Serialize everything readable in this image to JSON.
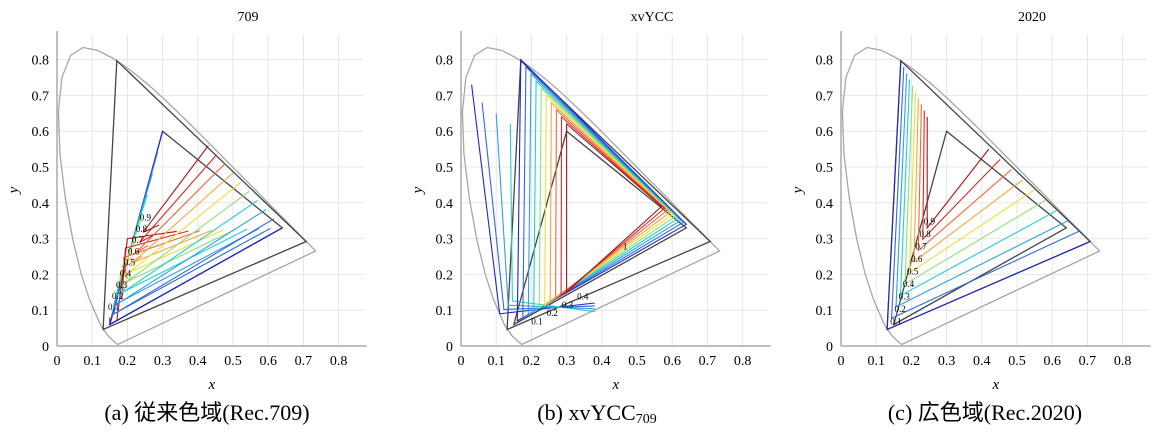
{
  "chart_data": [
    {
      "type": "line",
      "title": "709",
      "xlabel": "x",
      "ylabel": "y",
      "xlim": [
        0,
        0.87
      ],
      "ylim": [
        0,
        0.88
      ],
      "xticks": [
        "0",
        "0.1",
        "0.2",
        "0.3",
        "0.4",
        "0.5",
        "0.6",
        "0.7",
        "0.8"
      ],
      "yticks": [
        "0",
        "0.1",
        "0.2",
        "0.3",
        "0.4",
        "0.5",
        "0.6",
        "0.7",
        "0.8"
      ],
      "grid": true,
      "gamuts": [
        {
          "name": "Rec.709",
          "points": [
            [
              0.64,
              0.33
            ],
            [
              0.3,
              0.6
            ],
            [
              0.15,
              0.06
            ]
          ]
        },
        {
          "name": "Rec.2020",
          "points": [
            [
              0.708,
              0.292
            ],
            [
              0.17,
              0.797
            ],
            [
              0.131,
              0.046
            ]
          ]
        }
      ],
      "contour_levels": [
        "0.1",
        "0.2",
        "0.3",
        "0.4",
        "0.5",
        "0.6",
        "0.7",
        "0.8",
        "0.9"
      ]
    },
    {
      "type": "line",
      "title": "xvYCC",
      "xlabel": "x",
      "ylabel": "y",
      "xlim": [
        0,
        0.87
      ],
      "ylim": [
        0,
        0.88
      ],
      "xticks": [
        "0",
        "0.1",
        "0.2",
        "0.3",
        "0.4",
        "0.5",
        "0.6",
        "0.7",
        "0.8"
      ],
      "yticks": [
        "0",
        "0.1",
        "0.2",
        "0.3",
        "0.4",
        "0.5",
        "0.6",
        "0.7",
        "0.8"
      ],
      "grid": true,
      "gamuts": [
        {
          "name": "Rec.709",
          "points": [
            [
              0.64,
              0.33
            ],
            [
              0.3,
              0.6
            ],
            [
              0.15,
              0.06
            ]
          ]
        },
        {
          "name": "Rec.2020",
          "points": [
            [
              0.708,
              0.292
            ],
            [
              0.17,
              0.797
            ],
            [
              0.131,
              0.046
            ]
          ]
        }
      ],
      "contour_levels": [
        "0.1",
        "0.2",
        "0.3",
        "0.4",
        "1"
      ]
    },
    {
      "type": "line",
      "title": "2020",
      "xlabel": "x",
      "ylabel": "y",
      "xlim": [
        0,
        0.87
      ],
      "ylim": [
        0,
        0.88
      ],
      "xticks": [
        "0",
        "0.1",
        "0.2",
        "0.3",
        "0.4",
        "0.5",
        "0.6",
        "0.7",
        "0.8"
      ],
      "yticks": [
        "0",
        "0.1",
        "0.2",
        "0.3",
        "0.4",
        "0.5",
        "0.6",
        "0.7",
        "0.8"
      ],
      "grid": true,
      "gamuts": [
        {
          "name": "Rec.709",
          "points": [
            [
              0.64,
              0.33
            ],
            [
              0.3,
              0.6
            ],
            [
              0.15,
              0.06
            ]
          ]
        },
        {
          "name": "Rec.2020",
          "points": [
            [
              0.708,
              0.292
            ],
            [
              0.17,
              0.797
            ],
            [
              0.131,
              0.046
            ]
          ]
        }
      ],
      "contour_levels": [
        "0.1",
        "0.2",
        "0.3",
        "0.4",
        "0.5",
        "0.6",
        "0.7",
        "0.8",
        "0.9"
      ]
    }
  ],
  "captions": [
    {
      "label": "(a) 従来色域(Rec.709)"
    },
    {
      "label": "(b) xvYCC",
      "subscript": "709"
    },
    {
      "label": "(c) 広色域(Rec.2020)"
    }
  ],
  "colors": {
    "grid": "#e6e6e6",
    "axis": "#808080",
    "locus": "#a6a6a6",
    "gamut": "#444444",
    "contours": [
      "#1e28c8",
      "#2f6ad8",
      "#2e9fe4",
      "#1fd1cf",
      "#8ee07a",
      "#e8e23a",
      "#f7a53c",
      "#f06a3a",
      "#d42a2a",
      "#a81818"
    ]
  }
}
